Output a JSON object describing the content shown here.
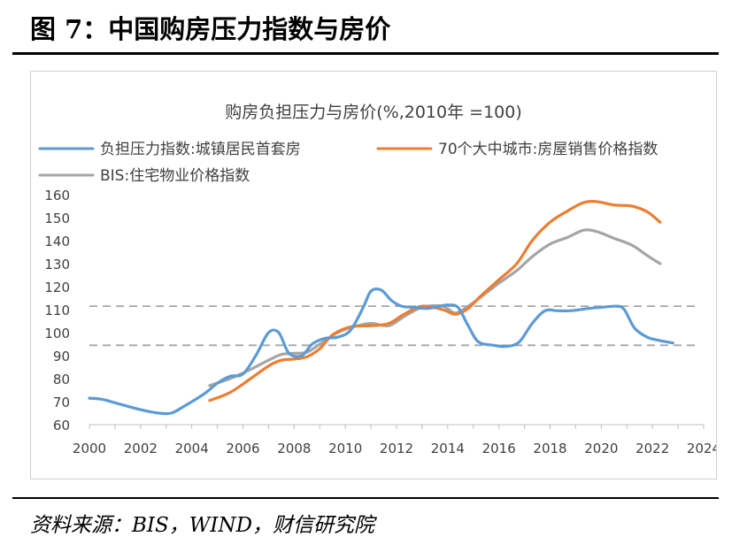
{
  "figure": {
    "title": "图 7：中国购房压力指数与房价",
    "source": "资料来源：BIS，WIND，财信研究院"
  },
  "chart_data": {
    "type": "line",
    "title": "购房负担压力与房价(%,2010年 =100)",
    "xlabel": "",
    "ylabel": "",
    "xlim": [
      2000,
      2024
    ],
    "ylim": [
      60,
      160
    ],
    "x_ticks": [
      "2000",
      "2002",
      "2004",
      "2006",
      "2008",
      "2010",
      "2012",
      "2014",
      "2016",
      "2018",
      "2020",
      "2022",
      "2024"
    ],
    "y_ticks": [
      "60",
      "70",
      "80",
      "90",
      "100",
      "110",
      "120",
      "130",
      "140",
      "150",
      "160"
    ],
    "grid": false,
    "legend_position": "top",
    "reference_lines": [
      111.5,
      94.5
    ],
    "series": [
      {
        "name": "负担压力指数:城镇居民首套房",
        "color": "#5b9bd5",
        "points": [
          [
            2000,
            71.5
          ],
          [
            2000.5,
            71
          ],
          [
            2001,
            69.5
          ],
          [
            2002,
            66.5
          ],
          [
            2002.7,
            65
          ],
          [
            2003.2,
            65
          ],
          [
            2003.7,
            68
          ],
          [
            2004.5,
            73.5
          ],
          [
            2005,
            78
          ],
          [
            2005.5,
            81
          ],
          [
            2006,
            82
          ],
          [
            2006.5,
            90
          ],
          [
            2007,
            100
          ],
          [
            2007.4,
            100
          ],
          [
            2007.8,
            91
          ],
          [
            2008.3,
            90
          ],
          [
            2008.7,
            95
          ],
          [
            2009.2,
            97.5
          ],
          [
            2009.7,
            98
          ],
          [
            2010.2,
            101
          ],
          [
            2010.7,
            111
          ],
          [
            2011,
            118
          ],
          [
            2011.4,
            118.5
          ],
          [
            2011.8,
            114
          ],
          [
            2012.2,
            111.5
          ],
          [
            2012.7,
            111
          ],
          [
            2013.2,
            110.5
          ],
          [
            2013.7,
            111.5
          ],
          [
            2014,
            112
          ],
          [
            2014.4,
            111
          ],
          [
            2014.8,
            103
          ],
          [
            2015.2,
            96
          ],
          [
            2015.8,
            94.5
          ],
          [
            2016.3,
            94
          ],
          [
            2016.8,
            96
          ],
          [
            2017.3,
            104
          ],
          [
            2017.8,
            109.5
          ],
          [
            2018.3,
            109.5
          ],
          [
            2018.8,
            109.5
          ],
          [
            2019.5,
            110.5
          ],
          [
            2020,
            111
          ],
          [
            2020.6,
            111.5
          ],
          [
            2020.9,
            110
          ],
          [
            2021.3,
            102
          ],
          [
            2021.8,
            98
          ],
          [
            2022.3,
            96.5
          ],
          [
            2022.8,
            95.5
          ]
        ]
      },
      {
        "name": "70个大中城市:房屋销售价格指数",
        "color": "#ed7d31",
        "points": [
          [
            2004.7,
            70.5
          ],
          [
            2005.5,
            74
          ],
          [
            2006.3,
            80
          ],
          [
            2007,
            85.5
          ],
          [
            2007.5,
            88
          ],
          [
            2008,
            88.5
          ],
          [
            2008.5,
            89.5
          ],
          [
            2009,
            93
          ],
          [
            2009.5,
            99
          ],
          [
            2010.2,
            102.5
          ],
          [
            2011,
            103
          ],
          [
            2011.7,
            104
          ],
          [
            2012.3,
            108
          ],
          [
            2013,
            111.5
          ],
          [
            2013.8,
            110
          ],
          [
            2014.3,
            108
          ],
          [
            2014.8,
            110.5
          ],
          [
            2015.3,
            116
          ],
          [
            2016,
            123
          ],
          [
            2016.7,
            130
          ],
          [
            2017.3,
            140
          ],
          [
            2018,
            148
          ],
          [
            2018.7,
            153
          ],
          [
            2019.3,
            156.5
          ],
          [
            2019.8,
            157
          ],
          [
            2020.5,
            155.5
          ],
          [
            2021.2,
            155
          ],
          [
            2021.8,
            152.5
          ],
          [
            2022.3,
            148
          ]
        ]
      },
      {
        "name": "BIS:住宅物业价格指数",
        "color": "#a5a5a5",
        "points": [
          [
            2004.7,
            77
          ],
          [
            2005.5,
            80
          ],
          [
            2006.3,
            84
          ],
          [
            2007,
            88
          ],
          [
            2007.5,
            90.5
          ],
          [
            2008,
            91
          ],
          [
            2008.5,
            91.5
          ],
          [
            2009,
            95
          ],
          [
            2009.7,
            100
          ],
          [
            2010.3,
            102.5
          ],
          [
            2011,
            104
          ],
          [
            2011.7,
            103
          ],
          [
            2012.3,
            107
          ],
          [
            2013,
            111
          ],
          [
            2013.8,
            111.5
          ],
          [
            2014.3,
            108.5
          ],
          [
            2014.8,
            111.5
          ],
          [
            2015.3,
            115.5
          ],
          [
            2016,
            121.5
          ],
          [
            2016.7,
            127
          ],
          [
            2017.3,
            133
          ],
          [
            2018,
            138.5
          ],
          [
            2018.7,
            141.5
          ],
          [
            2019.3,
            144.5
          ],
          [
            2019.8,
            144
          ],
          [
            2020.5,
            141
          ],
          [
            2021.2,
            138
          ],
          [
            2021.8,
            133.5
          ],
          [
            2022.3,
            130
          ]
        ]
      }
    ]
  }
}
